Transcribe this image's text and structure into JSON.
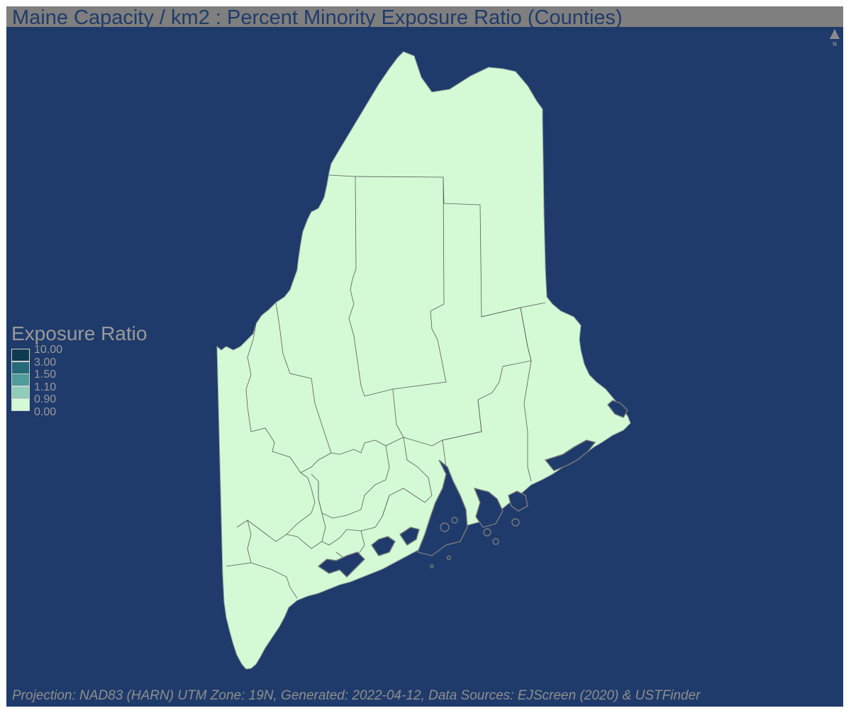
{
  "title": "Maine Capacity / km2 : Percent Minority Exposure Ratio (Counties)",
  "footer": "Projection: NAD83 (HARN) UTM Zone: 19N, Generated: 2022-04-12, Data Sources: EJScreen (2020) & USTFinder",
  "north_label": "N",
  "legend": {
    "title": "Exposure Ratio",
    "breaks": [
      "10.00",
      "3.00",
      "1.50",
      "1.10",
      "0.90",
      "0.00"
    ],
    "colors": [
      "#0e3b4f",
      "#26697a",
      "#4f9c9b",
      "#8fcdb8",
      "#d3fad5"
    ]
  },
  "colors": {
    "background": "#1f3b6b",
    "title_bar": "#7f7f7f",
    "land": "#d3fad5",
    "boundary": "#5a5a5a",
    "island_outline": "#7a7a7a"
  },
  "map": {
    "state": "Maine",
    "unit": "Counties",
    "all_counties_class": "0.00 - 0.90"
  }
}
